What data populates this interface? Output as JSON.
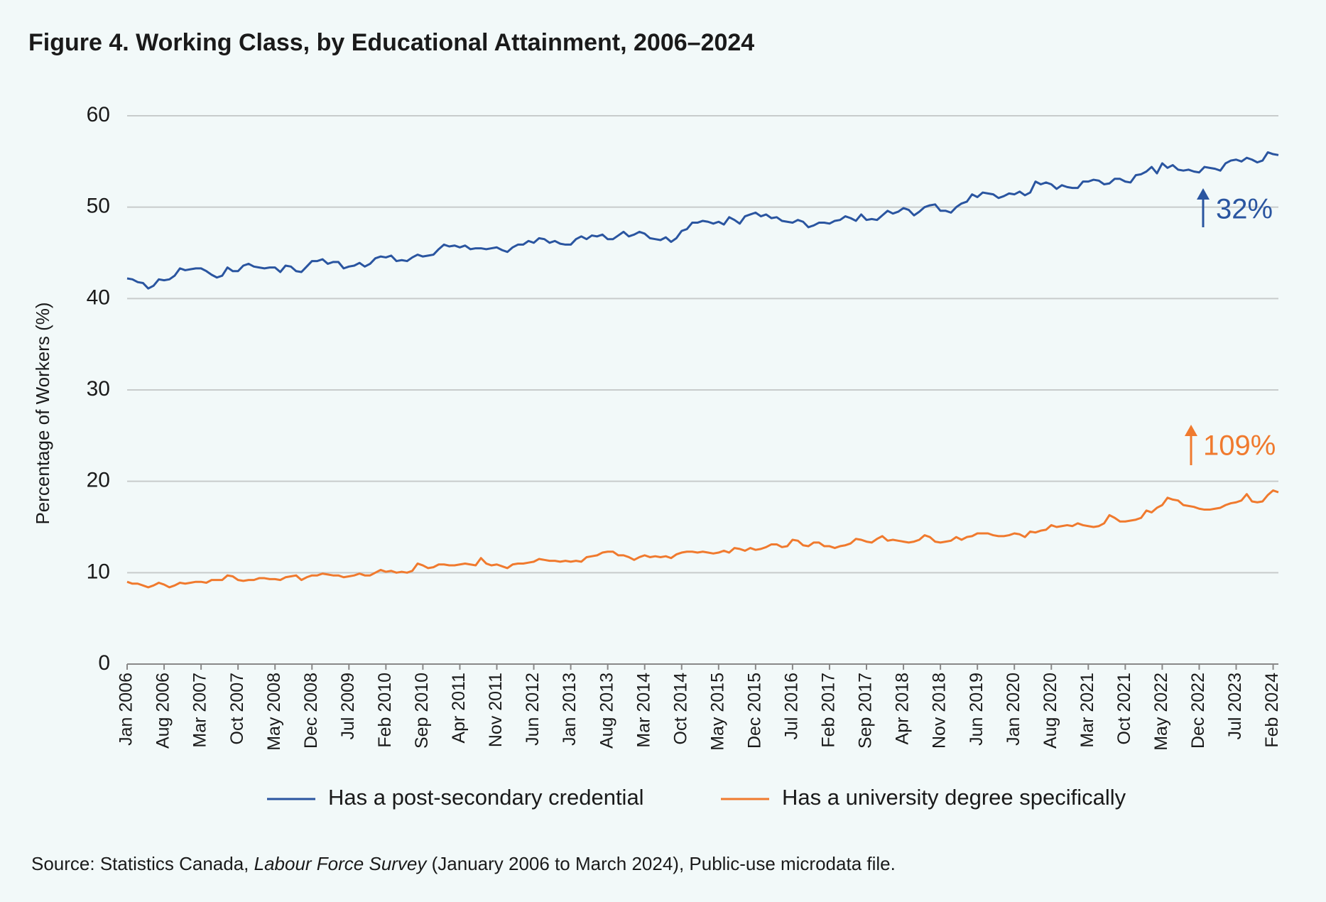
{
  "chart_data": {
    "type": "line",
    "title": "Figure 4. Working Class, by Educational Attainment, 2006–2024",
    "y_label": "Percentage of Workers (%)",
    "source": [
      "Source: Statistics Canada, ",
      "Labour Force Survey",
      " (January 2006 to March 2024), Public-use microdata file."
    ],
    "ylim": [
      0,
      60
    ],
    "yticks": [
      0,
      10,
      20,
      30,
      40,
      50,
      60
    ],
    "grid": true,
    "categories": [
      "Jan 2006",
      null,
      null,
      null,
      null,
      null,
      null,
      "Aug 2006",
      null,
      null,
      null,
      null,
      null,
      null,
      "Mar 2007",
      null,
      null,
      null,
      null,
      null,
      null,
      "Oct 2007",
      null,
      null,
      null,
      null,
      null,
      null,
      "May 2008",
      null,
      null,
      null,
      null,
      null,
      null,
      "Dec 2008",
      null,
      null,
      null,
      null,
      null,
      null,
      "Jul 2009",
      null,
      null,
      null,
      null,
      null,
      null,
      "Feb 2010",
      null,
      null,
      null,
      null,
      null,
      null,
      "Sep 2010",
      null,
      null,
      null,
      null,
      null,
      null,
      "Apr 2011",
      null,
      null,
      null,
      null,
      null,
      null,
      "Nov 2011",
      null,
      null,
      null,
      null,
      null,
      null,
      "Jun 2012",
      null,
      null,
      null,
      null,
      null,
      null,
      "Jan 2013",
      null,
      null,
      null,
      null,
      null,
      null,
      "Aug 2013",
      null,
      null,
      null,
      null,
      null,
      null,
      "Mar 2014",
      null,
      null,
      null,
      null,
      null,
      null,
      "Oct 2014",
      null,
      null,
      null,
      null,
      null,
      null,
      "May 2015",
      null,
      null,
      null,
      null,
      null,
      null,
      "Dec 2015",
      null,
      null,
      null,
      null,
      null,
      null,
      "Jul 2016",
      null,
      null,
      null,
      null,
      null,
      null,
      "Feb 2017",
      null,
      null,
      null,
      null,
      null,
      null,
      "Sep 2017",
      null,
      null,
      null,
      null,
      null,
      null,
      "Apr 2018",
      null,
      null,
      null,
      null,
      null,
      null,
      "Nov 2018",
      null,
      null,
      null,
      null,
      null,
      null,
      "Jun 2019",
      null,
      null,
      null,
      null,
      null,
      null,
      "Jan 2020",
      null,
      null,
      null,
      null,
      null,
      null,
      "Aug 2020",
      null,
      null,
      null,
      null,
      null,
      null,
      "Mar 2021",
      null,
      null,
      null,
      null,
      null,
      null,
      "Oct 2021",
      null,
      null,
      null,
      null,
      null,
      null,
      "May 2022",
      null,
      null,
      null,
      null,
      null,
      null,
      "Dec 2022",
      null,
      null,
      null,
      null,
      null,
      null,
      "Jul 2023",
      null,
      null,
      null,
      null,
      null,
      null,
      "Feb 2024",
      null
    ],
    "series": [
      {
        "name": "Has a post-secondary credential",
        "color": "#2a55a0",
        "values": [
          42.2,
          42.1,
          41.8,
          41.7,
          41.1,
          41.4,
          42.1,
          42.0,
          42.1,
          42.5,
          43.3,
          43.1,
          43.2,
          43.3,
          43.3,
          43.0,
          42.6,
          42.3,
          42.5,
          43.4,
          43.0,
          43.0,
          43.6,
          43.8,
          43.5,
          43.4,
          43.3,
          43.4,
          43.4,
          42.9,
          43.6,
          43.5,
          43.0,
          42.9,
          43.5,
          44.1,
          44.1,
          44.3,
          43.8,
          44.0,
          44.0,
          43.3,
          43.5,
          43.6,
          43.9,
          43.5,
          43.8,
          44.4,
          44.6,
          44.5,
          44.7,
          44.1,
          44.2,
          44.1,
          44.5,
          44.8,
          44.6,
          44.7,
          44.8,
          45.4,
          45.9,
          45.7,
          45.8,
          45.6,
          45.8,
          45.4,
          45.5,
          45.5,
          45.4,
          45.5,
          45.6,
          45.3,
          45.1,
          45.6,
          45.9,
          45.9,
          46.3,
          46.1,
          46.6,
          46.5,
          46.1,
          46.3,
          46.0,
          45.9,
          45.9,
          46.5,
          46.8,
          46.5,
          46.9,
          46.8,
          47.0,
          46.5,
          46.5,
          46.9,
          47.3,
          46.8,
          47.0,
          47.3,
          47.1,
          46.6,
          46.5,
          46.4,
          46.7,
          46.2,
          46.6,
          47.4,
          47.6,
          48.3,
          48.3,
          48.5,
          48.4,
          48.2,
          48.4,
          48.1,
          48.9,
          48.6,
          48.2,
          49.0,
          49.2,
          49.4,
          49.0,
          49.2,
          48.8,
          48.9,
          48.5,
          48.4,
          48.3,
          48.6,
          48.4,
          47.8,
          48.0,
          48.3,
          48.3,
          48.2,
          48.5,
          48.6,
          49.0,
          48.8,
          48.5,
          49.2,
          48.6,
          48.7,
          48.6,
          49.1,
          49.6,
          49.3,
          49.5,
          49.9,
          49.7,
          49.1,
          49.5,
          50.0,
          50.2,
          50.3,
          49.6,
          49.6,
          49.4,
          50.0,
          50.4,
          50.6,
          51.4,
          51.1,
          51.6,
          51.5,
          51.4,
          51.0,
          51.2,
          51.5,
          51.4,
          51.7,
          51.3,
          51.6,
          52.8,
          52.5,
          52.7,
          52.5,
          52.0,
          52.4,
          52.2,
          52.1,
          52.1,
          52.8,
          52.8,
          53.0,
          52.9,
          52.5,
          52.6,
          53.1,
          53.1,
          52.8,
          52.7,
          53.5,
          53.6,
          53.9,
          54.4,
          53.7,
          54.8,
          54.3,
          54.6,
          54.1,
          54.0,
          54.1,
          53.9,
          53.8,
          54.4,
          54.3,
          54.2,
          54.0,
          54.8,
          55.1,
          55.2,
          55.0,
          55.4,
          55.2,
          54.9,
          55.1,
          56.0,
          55.8,
          55.7
        ]
      },
      {
        "name": "Has a university degree specifically",
        "color": "#f07a2e",
        "values": [
          9.0,
          8.8,
          8.8,
          8.6,
          8.4,
          8.6,
          8.9,
          8.7,
          8.4,
          8.6,
          8.9,
          8.8,
          8.9,
          9.0,
          9.0,
          8.9,
          9.2,
          9.2,
          9.2,
          9.7,
          9.6,
          9.2,
          9.1,
          9.2,
          9.2,
          9.4,
          9.4,
          9.3,
          9.3,
          9.2,
          9.5,
          9.6,
          9.7,
          9.2,
          9.5,
          9.7,
          9.7,
          9.9,
          9.8,
          9.7,
          9.7,
          9.5,
          9.6,
          9.7,
          9.9,
          9.7,
          9.7,
          10.0,
          10.3,
          10.1,
          10.2,
          10.0,
          10.1,
          10.0,
          10.2,
          11.0,
          10.8,
          10.5,
          10.6,
          10.9,
          10.9,
          10.8,
          10.8,
          10.9,
          11.0,
          10.9,
          10.8,
          11.6,
          11.0,
          10.8,
          10.9,
          10.7,
          10.5,
          10.9,
          11.0,
          11.0,
          11.1,
          11.2,
          11.5,
          11.4,
          11.3,
          11.3,
          11.2,
          11.3,
          11.2,
          11.3,
          11.2,
          11.7,
          11.8,
          11.9,
          12.2,
          12.3,
          12.3,
          11.9,
          11.9,
          11.7,
          11.4,
          11.7,
          11.9,
          11.7,
          11.8,
          11.7,
          11.8,
          11.6,
          12.0,
          12.2,
          12.3,
          12.3,
          12.2,
          12.3,
          12.2,
          12.1,
          12.2,
          12.4,
          12.2,
          12.7,
          12.6,
          12.4,
          12.7,
          12.5,
          12.6,
          12.8,
          13.1,
          13.1,
          12.8,
          12.9,
          13.6,
          13.5,
          13.0,
          12.9,
          13.3,
          13.3,
          12.9,
          12.9,
          12.7,
          12.9,
          13.0,
          13.2,
          13.7,
          13.6,
          13.4,
          13.3,
          13.7,
          14.0,
          13.5,
          13.6,
          13.5,
          13.4,
          13.3,
          13.4,
          13.6,
          14.1,
          13.9,
          13.4,
          13.3,
          13.4,
          13.5,
          13.9,
          13.6,
          13.9,
          14.0,
          14.3,
          14.3,
          14.3,
          14.1,
          14.0,
          14.0,
          14.1,
          14.3,
          14.2,
          13.9,
          14.5,
          14.4,
          14.6,
          14.7,
          15.2,
          15.0,
          15.1,
          15.2,
          15.1,
          15.4,
          15.2,
          15.1,
          15.0,
          15.1,
          15.4,
          16.3,
          16.0,
          15.6,
          15.6,
          15.7,
          15.8,
          16.0,
          16.8,
          16.6,
          17.1,
          17.4,
          18.2,
          18.0,
          17.9,
          17.4,
          17.3,
          17.2,
          17.0,
          16.9,
          16.9,
          17.0,
          17.1,
          17.4,
          17.6,
          17.7,
          17.9,
          18.6,
          17.8,
          17.7,
          17.8,
          18.5,
          19.0,
          18.8
        ]
      }
    ],
    "annotations": [
      {
        "text": "32%",
        "color": "#2a55a0"
      },
      {
        "text": "109%",
        "color": "#f07a2e"
      }
    ]
  }
}
